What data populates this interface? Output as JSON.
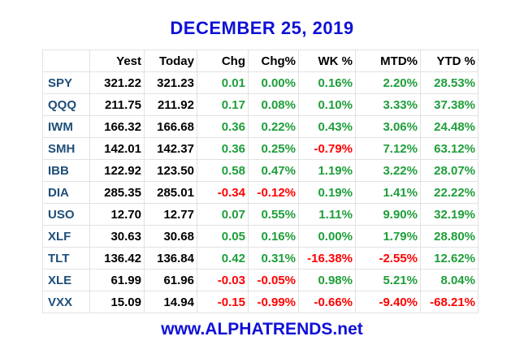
{
  "header": {
    "title": "DECEMBER 25, 2019"
  },
  "table": {
    "columns": [
      "",
      "Yest",
      "Today",
      "Chg",
      "Chg%",
      "WK %",
      "MTD%",
      "YTD %"
    ],
    "rows": [
      [
        "SPY",
        "321.22",
        "321.23",
        "0.01",
        "0.00%",
        "0.16%",
        "2.20%",
        "28.53%"
      ],
      [
        "QQQ",
        "211.75",
        "211.92",
        "0.17",
        "0.08%",
        "0.10%",
        "3.33%",
        "37.38%"
      ],
      [
        "IWM",
        "166.32",
        "166.68",
        "0.36",
        "0.22%",
        "0.43%",
        "3.06%",
        "24.48%"
      ],
      [
        "SMH",
        "142.01",
        "142.37",
        "0.36",
        "0.25%",
        "-0.79%",
        "7.12%",
        "63.12%"
      ],
      [
        "IBB",
        "122.92",
        "123.50",
        "0.58",
        "0.47%",
        "1.19%",
        "3.22%",
        "28.07%"
      ],
      [
        "DIA",
        "285.35",
        "285.01",
        "-0.34",
        "-0.12%",
        "0.19%",
        "1.41%",
        "22.22%"
      ],
      [
        "USO",
        "12.70",
        "12.77",
        "0.07",
        "0.55%",
        "1.11%",
        "9.90%",
        "32.19%"
      ],
      [
        "XLF",
        "30.63",
        "30.68",
        "0.05",
        "0.16%",
        "0.00%",
        "1.79%",
        "28.80%"
      ],
      [
        "TLT",
        "136.42",
        "136.84",
        "0.42",
        "0.31%",
        "-16.38%",
        "-2.55%",
        "12.62%"
      ],
      [
        "XLE",
        "61.99",
        "61.96",
        "-0.03",
        "-0.05%",
        "0.98%",
        "5.21%",
        "8.04%"
      ],
      [
        "VXX",
        "15.09",
        "14.94",
        "-0.15",
        "-0.99%",
        "-0.66%",
        "-9.40%",
        "-68.21%"
      ]
    ]
  },
  "footer": {
    "site": "www.ALPHATRENDS.net"
  }
}
